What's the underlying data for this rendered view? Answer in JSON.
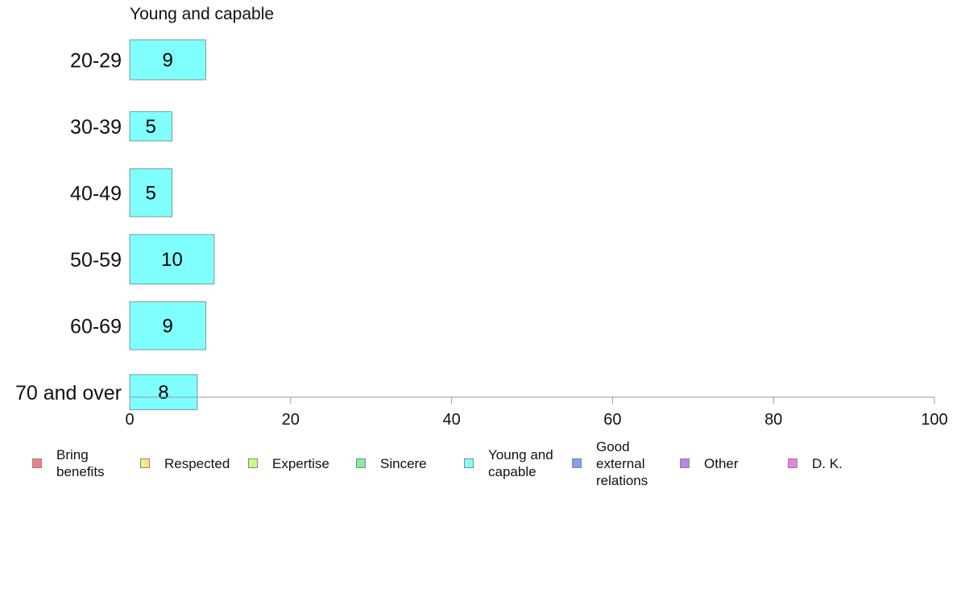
{
  "chart_data": {
    "type": "bar",
    "orientation": "horizontal",
    "title": "Young and capable",
    "categories": [
      "20-29",
      "30-39",
      "40-49",
      "50-59",
      "60-69",
      "70 and over"
    ],
    "series": [
      {
        "name": "Young and capable",
        "values": [
          9,
          5,
          5,
          10,
          9,
          8
        ],
        "color": "#80ffff"
      }
    ],
    "bar_widths_relative": [
      0.75,
      0.55,
      0.9,
      0.93,
      0.9,
      0.66
    ],
    "xlim": [
      0,
      100
    ],
    "xticks": [
      "0",
      "20",
      "40",
      "60",
      "80",
      "100"
    ],
    "grid": false,
    "legend_position": "bottom",
    "legend": [
      {
        "label": "Bring\nbenefits",
        "color": "#f08080"
      },
      {
        "label": "Respected",
        "color": "#ffe680"
      },
      {
        "label": "Expertise",
        "color": "#c8ff80"
      },
      {
        "label": "Sincere",
        "color": "#80f0a0"
      },
      {
        "label": "Young and\ncapable",
        "color": "#80ffff"
      },
      {
        "label": "Good\nexternal\nrelations",
        "color": "#80a0f0"
      },
      {
        "label": "Other",
        "color": "#c080f0"
      },
      {
        "label": "D. K.",
        "color": "#f080e0"
      }
    ]
  }
}
